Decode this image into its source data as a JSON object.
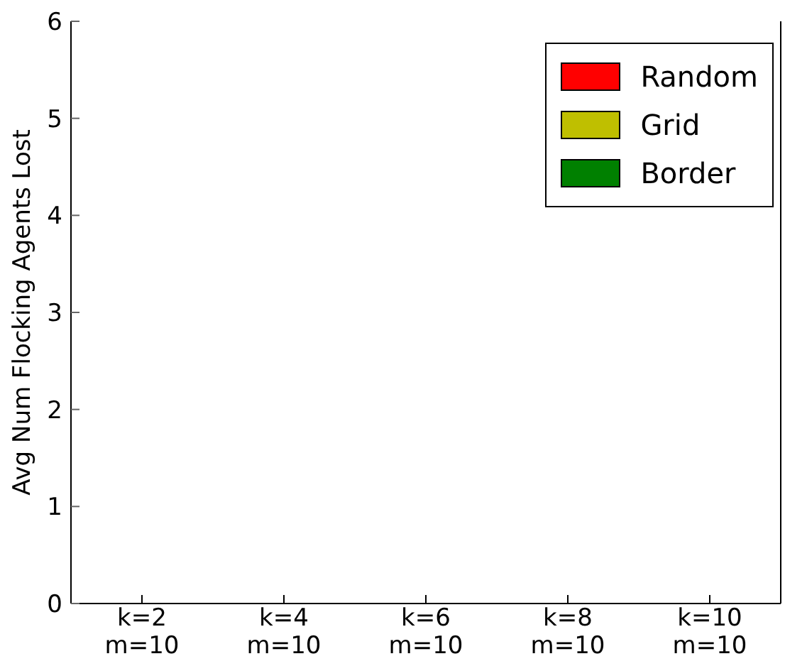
{
  "chart_data": {
    "type": "bar",
    "ylabel": "Avg Num Flocking Agents Lost",
    "categories": [
      "k=2\nm=10",
      "k=4\nm=10",
      "k=6\nm=10",
      "k=8\nm=10",
      "k=10\nm=10"
    ],
    "series": [
      {
        "name": "Random",
        "color": "#ff0000",
        "values": [
          0,
          0,
          0,
          0,
          0
        ]
      },
      {
        "name": "Grid",
        "color": "#bfbf00",
        "values": [
          0,
          0,
          0,
          0,
          0
        ]
      },
      {
        "name": "Border",
        "color": "#008000",
        "values": [
          0,
          0,
          0,
          0,
          0
        ]
      }
    ],
    "ylim": [
      0,
      6
    ],
    "yticks": [
      0,
      1,
      2,
      3,
      4,
      5,
      6
    ],
    "grid": false,
    "legend": "top right"
  }
}
